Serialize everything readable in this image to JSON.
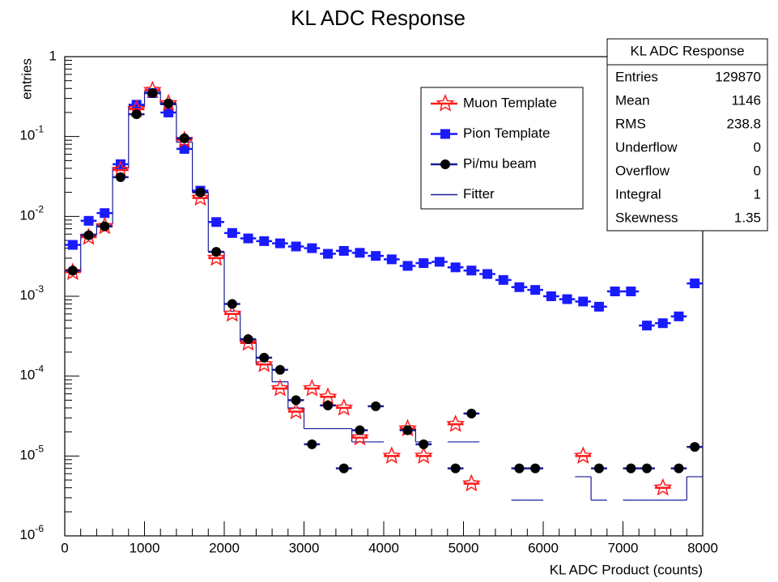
{
  "chart_data": {
    "type": "histogram",
    "title": "KL ADC Response",
    "xlabel": "KL ADC Product (counts)",
    "ylabel": "entries",
    "log_y": true,
    "xlim": [
      0,
      8000
    ],
    "ylim": [
      1e-06,
      1
    ],
    "xticks": [
      0,
      1000,
      2000,
      3000,
      4000,
      5000,
      6000,
      7000,
      8000
    ],
    "yticks": [
      {
        "value": 1e-06,
        "label": "10",
        "exponent": "-6"
      },
      {
        "value": 1e-05,
        "label": "10",
        "exponent": "-5"
      },
      {
        "value": 0.0001,
        "label": "10",
        "exponent": "-4"
      },
      {
        "value": 0.001,
        "label": "10",
        "exponent": "-3"
      },
      {
        "value": 0.01,
        "label": "10",
        "exponent": "-2"
      },
      {
        "value": 0.1,
        "label": "10",
        "exponent": "-1"
      },
      1
    ],
    "x": [
      100,
      300,
      500,
      700,
      900,
      1100,
      1300,
      1500,
      1700,
      1900,
      2100,
      2300,
      2500,
      2700,
      2900,
      3100,
      3300,
      3500,
      3700,
      3900,
      4100,
      4300,
      4500,
      4700,
      4900,
      5100,
      5300,
      5500,
      5700,
      5900,
      6100,
      6300,
      6500,
      6700,
      6900,
      7100,
      7300,
      7500,
      7700,
      7900
    ],
    "bin_width": 200,
    "legend": "upper right",
    "series": [
      {
        "name": "Fitter",
        "color": "#1a1a99",
        "style": "step",
        "values": [
          0.002,
          0.006,
          0.008,
          0.04,
          0.24,
          0.37,
          0.25,
          0.085,
          0.02,
          0.0036,
          0.00065,
          0.00027,
          0.00014,
          8.5e-05,
          4e-05,
          2.2e-05,
          2.2e-05,
          2.2e-05,
          1.5e-05,
          1.5e-05,
          null,
          2.2e-05,
          1.5e-05,
          null,
          1.5e-05,
          1.5e-05,
          null,
          null,
          2.8e-06,
          2.8e-06,
          null,
          null,
          5.5e-06,
          2.8e-06,
          null,
          2.8e-06,
          2.8e-06,
          2.8e-06,
          2.8e-06,
          5.5e-06
        ]
      },
      {
        "name": "Pion Template",
        "color": "#1a1aff",
        "style": "square",
        "values": [
          0.0044,
          0.0088,
          0.011,
          0.045,
          0.25,
          0.35,
          0.2,
          0.07,
          0.021,
          0.0085,
          0.0062,
          0.0053,
          0.0049,
          0.0046,
          0.0042,
          0.004,
          0.0034,
          0.0037,
          0.0035,
          0.0032,
          0.0029,
          0.0024,
          0.0026,
          0.0027,
          0.0023,
          0.0021,
          0.0019,
          0.0016,
          0.0013,
          0.0012,
          0.001,
          0.00092,
          0.00086,
          0.00074,
          0.00115,
          0.00115,
          0.00043,
          0.00046,
          0.00056,
          0.00145
        ]
      },
      {
        "name": "Muon Template",
        "color": "#ff1a1a",
        "style": "star",
        "values": [
          0.002,
          0.0055,
          0.0075,
          0.038,
          0.22,
          0.38,
          0.26,
          0.09,
          0.017,
          0.003,
          0.0006,
          0.00026,
          0.00014,
          7e-05,
          3.6e-05,
          7e-05,
          5.5e-05,
          4e-05,
          1.7e-05,
          null,
          1e-05,
          2.2e-05,
          1e-05,
          null,
          2.5e-05,
          4.5e-06,
          null,
          null,
          null,
          null,
          null,
          null,
          1e-05,
          null,
          null,
          null,
          null,
          4e-06,
          null,
          null
        ]
      },
      {
        "name": "Pi/mu beam",
        "color": "#000000",
        "style": "circle",
        "values": [
          0.0021,
          0.0058,
          0.0075,
          0.031,
          0.19,
          0.35,
          0.26,
          0.095,
          0.02,
          0.0036,
          0.0008,
          0.00029,
          0.00017,
          0.00012,
          5e-05,
          1.4e-05,
          4.3e-05,
          7e-06,
          2.1e-05,
          4.2e-05,
          null,
          2.1e-05,
          1.4e-05,
          null,
          7e-06,
          3.4e-05,
          null,
          null,
          7e-06,
          7e-06,
          null,
          null,
          null,
          7e-06,
          null,
          7e-06,
          7e-06,
          null,
          7e-06,
          1.3e-05
        ]
      }
    ],
    "stats": {
      "title": "KL ADC Response",
      "rows": [
        [
          "Entries",
          "129870"
        ],
        [
          "Mean",
          "1146"
        ],
        [
          "RMS",
          "238.8"
        ],
        [
          "Underflow",
          "0"
        ],
        [
          "Overflow",
          "0"
        ],
        [
          "Integral",
          "1"
        ],
        [
          "Skewness",
          "1.35"
        ]
      ]
    }
  }
}
